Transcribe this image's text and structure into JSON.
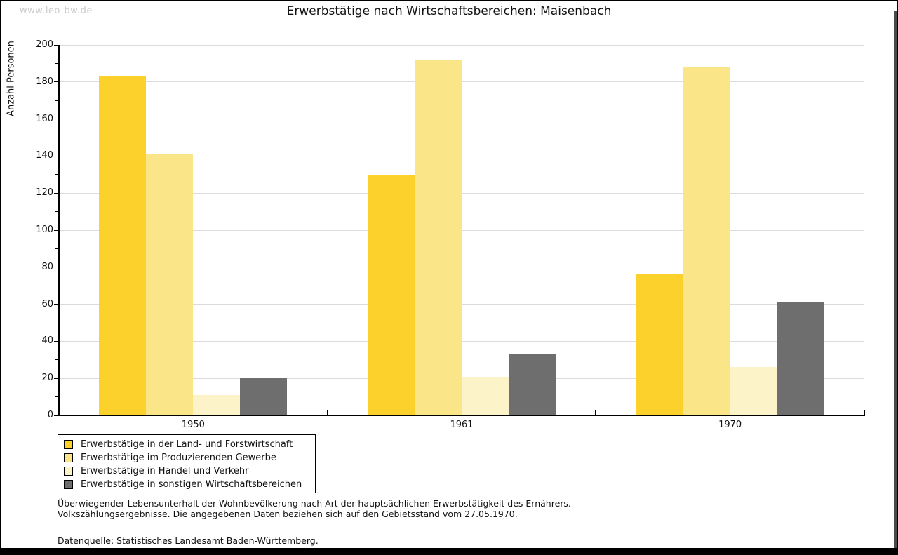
{
  "watermark": "www.leo-bw.de",
  "chart_data": {
    "type": "bar",
    "title": "Erwerbstätige nach Wirtschaftsbereichen: Maisenbach",
    "ylabel": "Anzahl Personen",
    "xlabel": "",
    "categories": [
      "1950",
      "1961",
      "1970"
    ],
    "series": [
      {
        "name": "Erwerbstätige in der Land- und Forstwirtschaft",
        "color": "#FCD12B",
        "values": [
          183,
          130,
          76
        ]
      },
      {
        "name": "Erwerbstätige im Produzierenden Gewerbe",
        "color": "#FAE588",
        "values": [
          141,
          192,
          188
        ]
      },
      {
        "name": "Erwerbstätige in Handel und Verkehr",
        "color": "#FCF3C9",
        "values": [
          11,
          21,
          26
        ]
      },
      {
        "name": "Erwerbstätige in sonstigen Wirtschaftsbereichen",
        "color": "#6E6E6E",
        "values": [
          20,
          33,
          61
        ]
      }
    ],
    "ylim": [
      0,
      200
    ],
    "ytick_step": 20,
    "yminor_step": 10,
    "grid": "horizontal",
    "legend_position": "bottom-left"
  },
  "footer": {
    "line1": "Überwiegender Lebensunterhalt der Wohnbevölkerung nach Art der hauptsächlichen Erwerbstätigkeit des Ernährers.",
    "line2": "Volkszählungsergebnisse. Die angegebenen Daten beziehen sich auf den Gebietsstand vom 27.05.1970.",
    "line3": "Datenquelle: Statistisches Landesamt Baden-Württemberg."
  },
  "colors": {
    "gridline": "#DCDCDC",
    "axis": "#000000",
    "watermark": "#CCCCCC",
    "frame": "#000000"
  }
}
